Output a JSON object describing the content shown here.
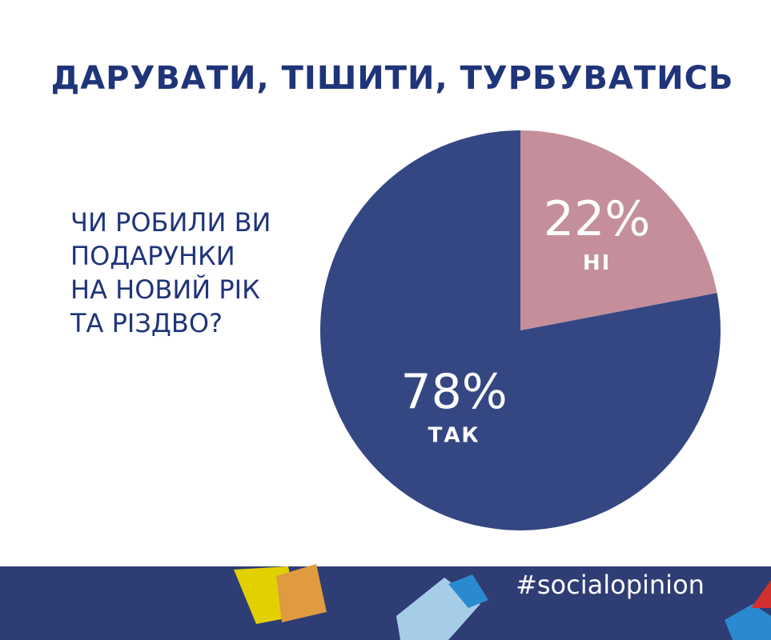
{
  "chart_data": {
    "type": "pie",
    "title": "ДАРУВАТИ, ТІШИТИ, ТУРБУВАТИСЬ",
    "question": [
      "ЧИ РОБИЛИ ВИ",
      "ПОДАРУНКИ",
      "НА НОВИЙ РІК",
      "ТА РІЗДВО?"
    ],
    "categories": [
      "НІ",
      "ТАК"
    ],
    "values": [
      22,
      78
    ],
    "value_labels": [
      "22%",
      "78%"
    ],
    "colors": [
      "#c48f9b",
      "#344783"
    ]
  },
  "footer": {
    "hashtag": "#socialopinion"
  }
}
